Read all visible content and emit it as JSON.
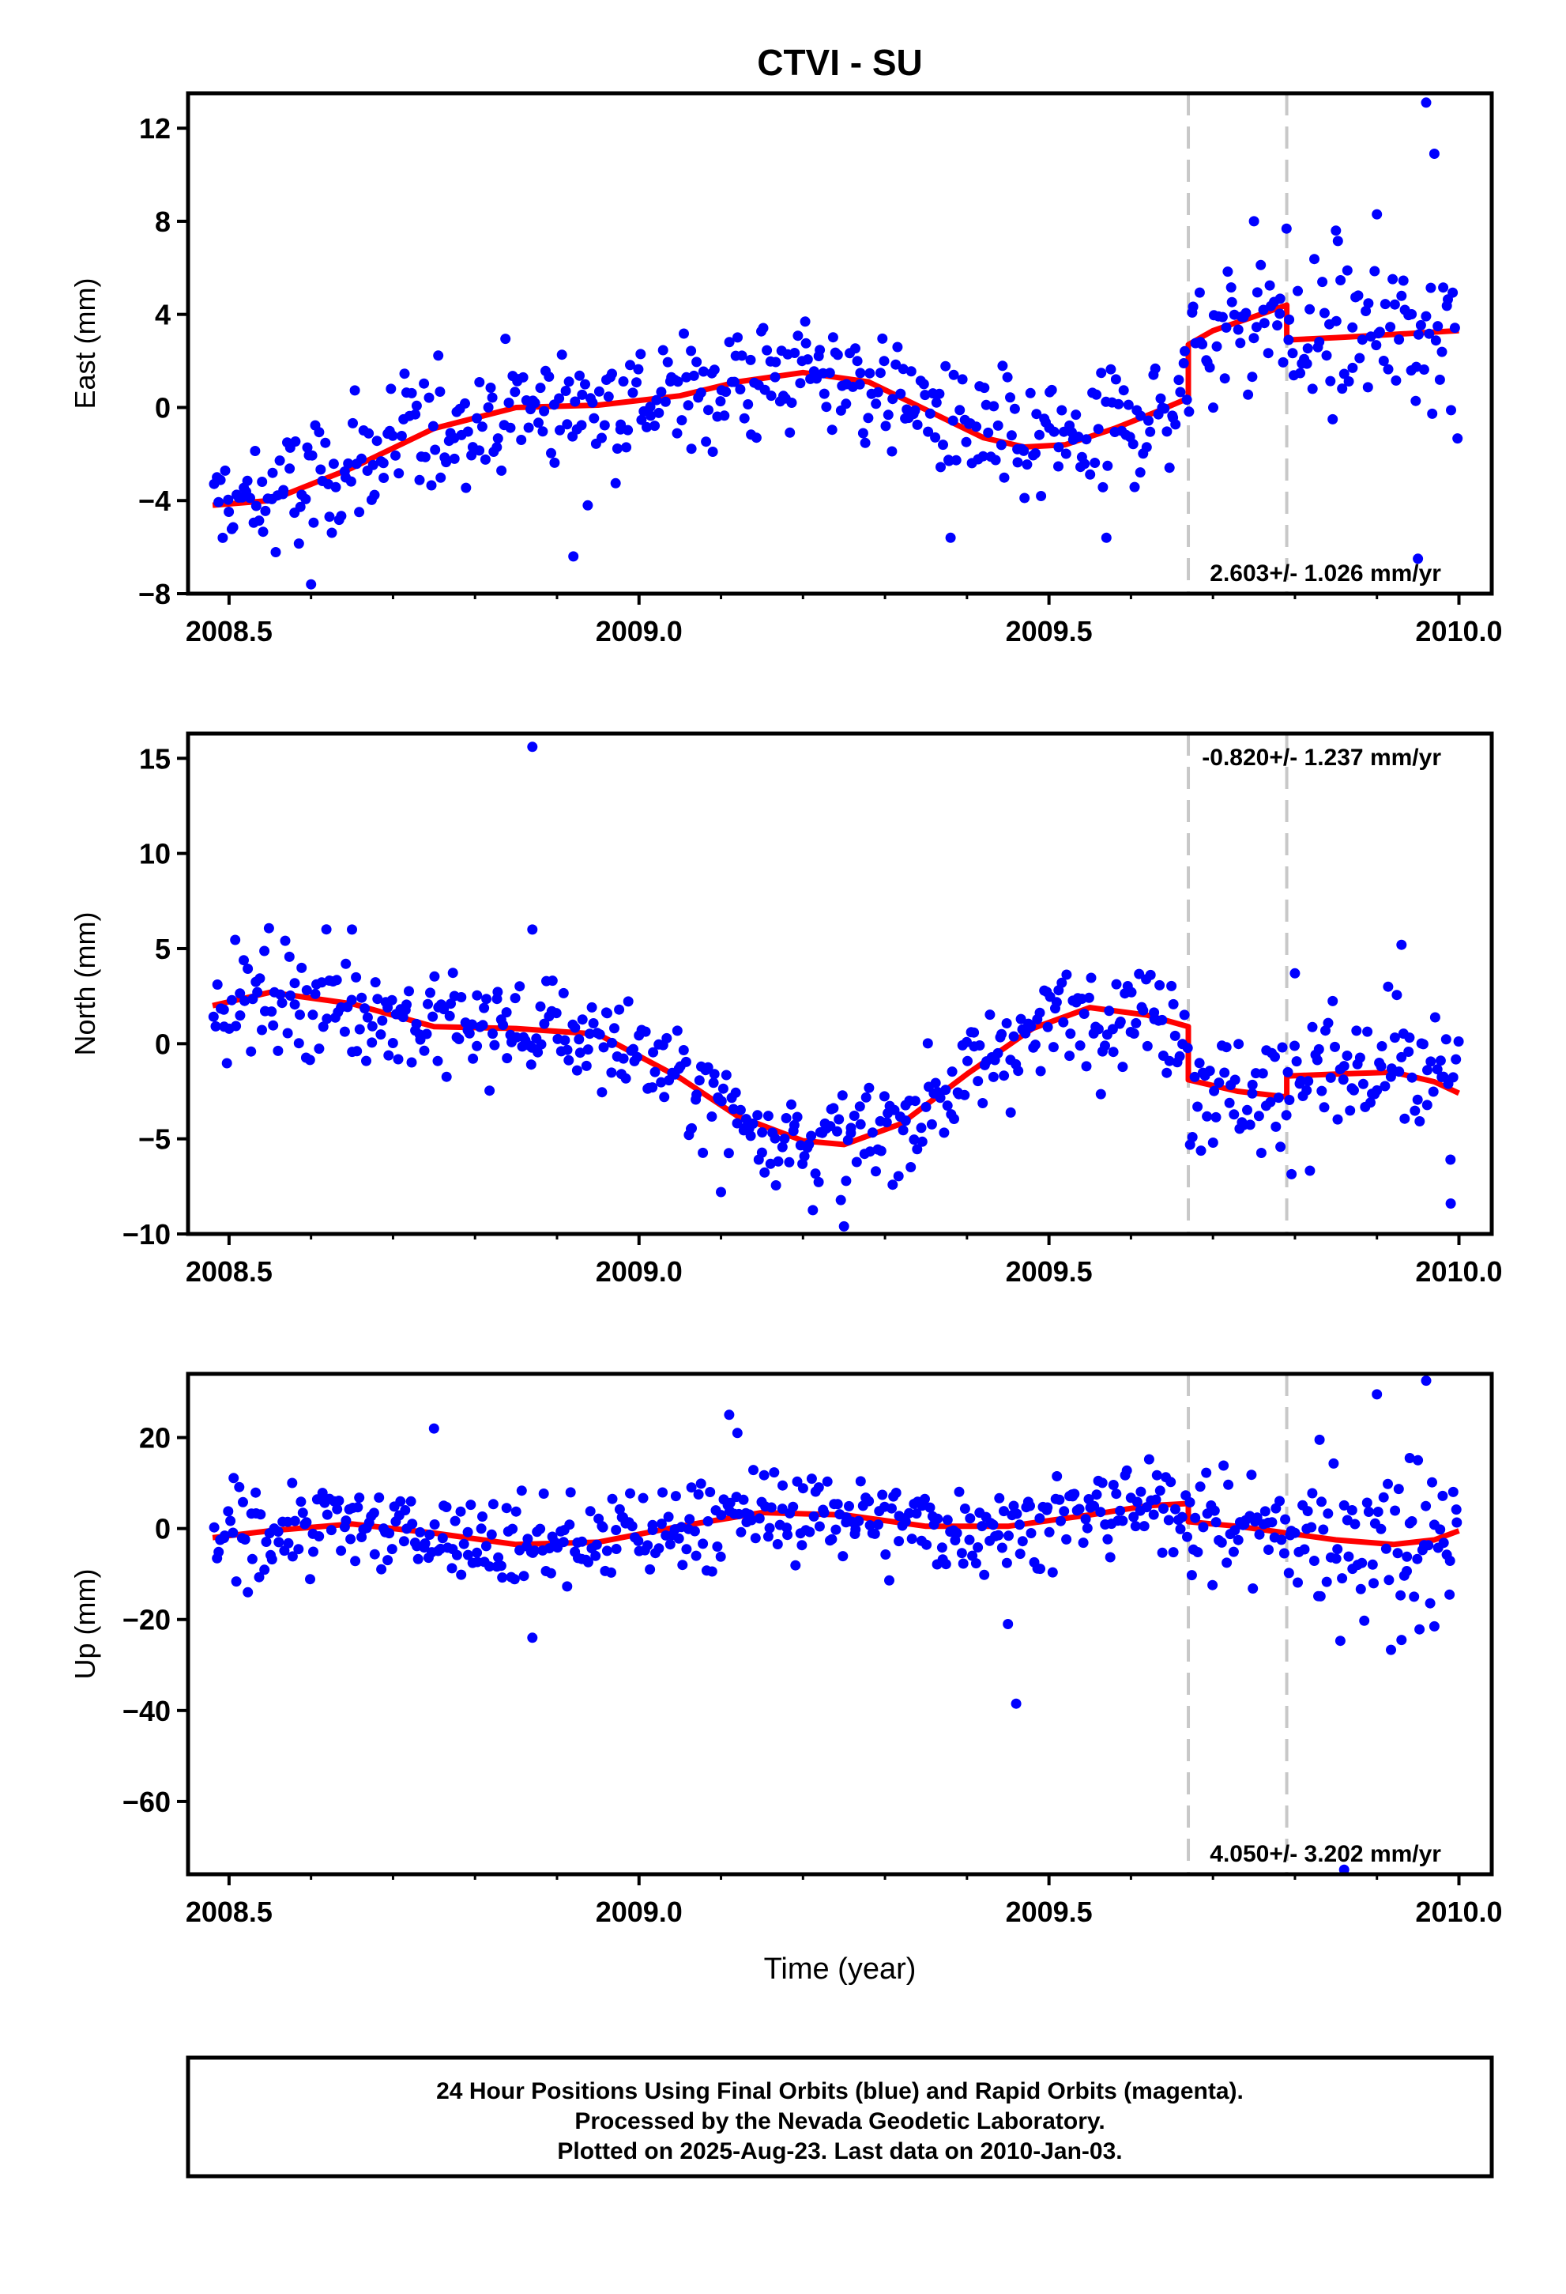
{
  "figure": {
    "title": "CTVI - SU",
    "xlabel": "Time (year)",
    "footer": [
      "24 Hour Positions Using Final Orbits (blue) and Rapid Orbits (magenta).",
      "Processed by the Nevada Geodetic Laboratory.",
      "Plotted on 2025-Aug-23. Last data on 2010-Jan-03."
    ]
  },
  "colors": {
    "points": "#0000ff",
    "model": "#ff0000",
    "steps": "#c8c8c8",
    "frame": "#000000"
  },
  "chart_data": [
    {
      "type": "scatter",
      "component": "east",
      "ylabel": "East (mm)",
      "rate_text": "2.603+/- 1.026 mm/yr",
      "rate_position": "bottom-right",
      "xlim": [
        2008.45,
        2010.04
      ],
      "ylim": [
        -8,
        13.5
      ],
      "xticks": [
        2008.5,
        2009.0,
        2009.5,
        2010.0
      ],
      "xtick_labels": [
        "2008.5",
        "2009.0",
        "2009.5",
        "2010.0"
      ],
      "yticks": [
        -8,
        -4,
        0,
        4,
        8,
        12
      ],
      "ytick_labels": [
        "−8",
        "−4",
        "0",
        "4",
        "8",
        "12"
      ],
      "step_epochs": [
        2009.67,
        2009.79
      ],
      "model": {
        "segments": [
          {
            "x": [
              2008.48,
              2008.55,
              2008.65,
              2008.75,
              2008.85,
              2008.95,
              2009.05,
              2009.12,
              2009.2,
              2009.28,
              2009.35,
              2009.42,
              2009.47,
              2009.52,
              2009.58,
              2009.63,
              2009.67
            ],
            "y": [
              -4.2,
              -4.0,
              -2.6,
              -0.9,
              0.0,
              0.1,
              0.5,
              1.1,
              1.5,
              1.1,
              -0.1,
              -1.3,
              -1.7,
              -1.6,
              -0.9,
              -0.2,
              0.4
            ]
          },
          {
            "x": [
              2009.67,
              2009.7,
              2009.75,
              2009.79
            ],
            "y": [
              2.7,
              3.3,
              3.9,
              4.4
            ]
          },
          {
            "x": [
              2009.79,
              2009.85,
              2009.9,
              2009.95,
              2010.0
            ],
            "y": [
              2.9,
              3.0,
              3.1,
              3.2,
              3.3
            ]
          }
        ]
      },
      "samples": [
        {
          "x": [
            2008.48,
            2008.55,
            2008.65,
            2008.75,
            2008.85,
            2008.95,
            2009.05,
            2009.12,
            2009.2,
            2009.28,
            2009.35,
            2009.42,
            2009.47,
            2009.52,
            2009.58,
            2009.63,
            2009.67
          ],
          "y": [
            -4.2,
            -4.0,
            -2.6,
            -0.9,
            0.0,
            0.1,
            0.5,
            1.1,
            1.5,
            1.1,
            -0.1,
            -1.3,
            -1.7,
            -1.6,
            -0.9,
            -0.2,
            0.4
          ],
          "spread": 1.4,
          "density": 360
        },
        {
          "x": [
            2009.67,
            2009.7,
            2009.75,
            2009.79
          ],
          "y": [
            2.7,
            3.3,
            3.9,
            4.4
          ],
          "spread": 1.5,
          "density": 360
        },
        {
          "x": [
            2009.79,
            2009.85,
            2009.9,
            2009.95,
            2010.0
          ],
          "y": [
            2.9,
            3.0,
            3.1,
            3.2,
            3.3
          ],
          "spread": 1.8,
          "density": 360
        }
      ],
      "outliers": {
        "x": [
          2008.6,
          2008.92,
          2009.95,
          2009.96,
          2009.97,
          2009.9,
          2009.75,
          2009.85,
          2009.38,
          2009.57
        ],
        "y": [
          -7.6,
          -6.4,
          -6.5,
          13.1,
          10.9,
          8.3,
          8.0,
          7.6,
          -5.6,
          -5.6
        ]
      }
    },
    {
      "type": "scatter",
      "component": "north",
      "ylabel": "North (mm)",
      "rate_text": "-0.820+/- 1.237 mm/yr",
      "rate_position": "top-right",
      "xlim": [
        2008.45,
        2010.04
      ],
      "ylim": [
        -10,
        16.3
      ],
      "xticks": [
        2008.5,
        2009.0,
        2009.5,
        2010.0
      ],
      "xtick_labels": [
        "2008.5",
        "2009.0",
        "2009.5",
        "2010.0"
      ],
      "yticks": [
        -10,
        -5,
        0,
        5,
        10,
        15
      ],
      "ytick_labels": [
        "−10",
        "−5",
        "0",
        "5",
        "10",
        "15"
      ],
      "step_epochs": [
        2009.67,
        2009.79
      ],
      "model": {
        "segments": [
          {
            "x": [
              2008.48,
              2008.55,
              2008.65,
              2008.75,
              2008.85,
              2008.95,
              2009.05,
              2009.12,
              2009.2,
              2009.25,
              2009.32,
              2009.4,
              2009.48,
              2009.55,
              2009.62,
              2009.67
            ],
            "y": [
              2.0,
              2.7,
              2.1,
              0.9,
              0.8,
              0.5,
              -1.8,
              -3.8,
              -5.1,
              -5.3,
              -4.2,
              -1.6,
              0.8,
              1.9,
              1.5,
              0.9
            ]
          },
          {
            "x": [
              2009.67,
              2009.73,
              2009.79
            ],
            "y": [
              -1.9,
              -2.5,
              -2.8
            ]
          },
          {
            "x": [
              2009.79,
              2009.85,
              2009.92,
              2009.97,
              2010.0
            ],
            "y": [
              -1.7,
              -1.6,
              -1.5,
              -2.0,
              -2.6
            ]
          }
        ]
      },
      "samples": [
        {
          "x": [
            2008.48,
            2008.55,
            2008.65,
            2008.75,
            2008.85,
            2008.95,
            2009.05,
            2009.12,
            2009.2,
            2009.25,
            2009.32,
            2009.4,
            2009.48,
            2009.55,
            2009.62,
            2009.67
          ],
          "y": [
            2.0,
            2.7,
            2.1,
            0.9,
            0.8,
            0.5,
            -1.8,
            -3.8,
            -5.1,
            -5.3,
            -4.2,
            -1.6,
            0.8,
            1.9,
            1.5,
            0.9
          ],
          "spread": 1.4,
          "density": 360
        },
        {
          "x": [
            2009.67,
            2009.73,
            2009.79
          ],
          "y": [
            -1.9,
            -2.5,
            -2.8
          ],
          "spread": 1.7,
          "density": 360
        },
        {
          "x": [
            2009.79,
            2009.85,
            2009.92,
            2009.97,
            2010.0
          ],
          "y": [
            -1.7,
            -1.6,
            -1.5,
            -2.0,
            -2.6
          ],
          "spread": 1.9,
          "density": 360
        }
      ],
      "outliers": {
        "x": [
          2008.87,
          2008.87,
          2009.93,
          2009.99,
          2009.25,
          2008.65,
          2009.1,
          2009.8
        ],
        "y": [
          15.6,
          6.0,
          5.2,
          -8.4,
          -9.6,
          6.0,
          -7.8,
          3.7
        ]
      }
    },
    {
      "type": "scatter",
      "component": "up",
      "ylabel": "Up (mm)",
      "rate_text": "4.050+/- 3.202 mm/yr",
      "rate_position": "bottom-right",
      "xlim": [
        2008.45,
        2010.04
      ],
      "ylim": [
        -76,
        34
      ],
      "xticks": [
        2008.5,
        2009.0,
        2009.5,
        2010.0
      ],
      "xtick_labels": [
        "2008.5",
        "2009.0",
        "2009.5",
        "2010.0"
      ],
      "yticks": [
        -60,
        -40,
        -20,
        0,
        20
      ],
      "ytick_labels": [
        "−60",
        "−40",
        "−20",
        "0",
        "20"
      ],
      "step_epochs": [
        2009.67,
        2009.79
      ],
      "model": {
        "segments": [
          {
            "x": [
              2008.48,
              2008.55,
              2008.65,
              2008.75,
              2008.85,
              2008.95,
              2009.05,
              2009.15,
              2009.25,
              2009.35,
              2009.45,
              2009.55,
              2009.62,
              2009.67
            ],
            "y": [
              -2.0,
              -0.5,
              1.0,
              -1.0,
              -3.5,
              -3.0,
              0.5,
              3.5,
              3.0,
              0.5,
              0.5,
              3.0,
              5.0,
              5.5
            ]
          },
          {
            "x": [
              2009.67,
              2009.73,
              2009.79
            ],
            "y": [
              1.5,
              0.5,
              -1.0
            ]
          },
          {
            "x": [
              2009.79,
              2009.85,
              2009.92,
              2009.97,
              2010.0
            ],
            "y": [
              -1.0,
              -2.5,
              -3.5,
              -2.5,
              -0.5
            ]
          }
        ]
      },
      "samples": [
        {
          "x": [
            2008.48,
            2008.55,
            2008.65,
            2008.75,
            2008.85,
            2008.95,
            2009.05,
            2009.15,
            2009.25,
            2009.35,
            2009.45,
            2009.55,
            2009.62,
            2009.67
          ],
          "y": [
            -2.0,
            -0.5,
            1.0,
            -1.0,
            -3.5,
            -3.0,
            0.5,
            3.5,
            3.0,
            0.5,
            0.5,
            3.0,
            5.0,
            5.5
          ],
          "spread": 5.0,
          "density": 360
        },
        {
          "x": [
            2009.67,
            2009.73,
            2009.79
          ],
          "y": [
            1.5,
            0.5,
            -1.0
          ],
          "spread": 6.0,
          "density": 360
        },
        {
          "x": [
            2009.79,
            2009.85,
            2009.92,
            2009.97,
            2010.0
          ],
          "y": [
            -1.0,
            -2.5,
            -3.5,
            -2.5,
            -0.5
          ],
          "spread": 9.0,
          "density": 360
        }
      ],
      "outliers": {
        "x": [
          2009.46,
          2009.45,
          2009.86,
          2009.11,
          2009.12,
          2008.75,
          2008.87,
          2009.9,
          2009.96,
          2009.83,
          2009.94,
          2009.97,
          2009.93,
          2009.95
        ],
        "y": [
          -38.5,
          -21.0,
          -75.0,
          25.0,
          21.0,
          22.0,
          -24.0,
          29.5,
          32.5,
          19.5,
          15.5,
          -21.5,
          -24.5,
          15.0
        ]
      }
    }
  ]
}
